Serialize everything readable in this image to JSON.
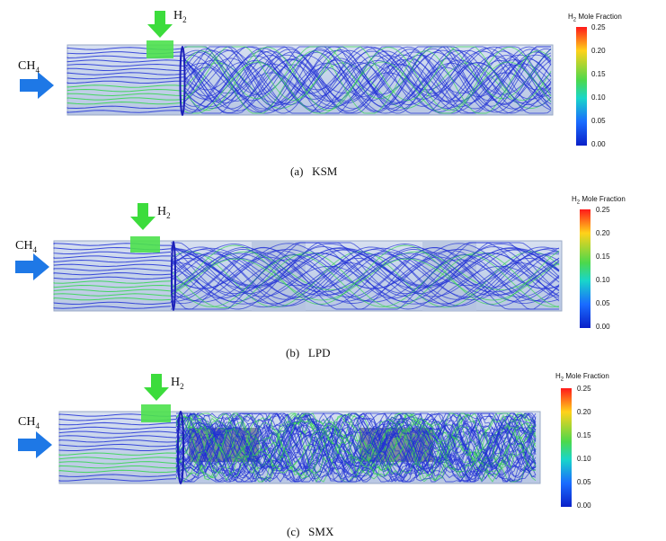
{
  "panels": [
    {
      "id": "ksm",
      "caption": "(a)   KSM",
      "inlet_ch4": "CH",
      "inlet_ch4_sub": "4",
      "inlet_h2": "H",
      "inlet_h2_sub": "2",
      "colorbar": {
        "title": "H",
        "title_sub": "2",
        "title_rest": " Mole Fraction",
        "ticks": [
          "0.25",
          "0.20",
          "0.15",
          "0.10",
          "0.05",
          "0.00"
        ]
      }
    },
    {
      "id": "lpd",
      "caption": "(b)   LPD",
      "inlet_ch4": "CH",
      "inlet_ch4_sub": "4",
      "inlet_h2": "H",
      "inlet_h2_sub": "2",
      "colorbar": {
        "title": "H",
        "title_sub": "2",
        "title_rest": " Mole Fraction",
        "ticks": [
          "0.25",
          "0.20",
          "0.15",
          "0.10",
          "0.05",
          "0.00"
        ]
      }
    },
    {
      "id": "smx",
      "caption": "(c)   SMX",
      "inlet_ch4": "CH",
      "inlet_ch4_sub": "4",
      "inlet_h2": "H",
      "inlet_h2_sub": "2",
      "colorbar": {
        "title": "H",
        "title_sub": "2",
        "title_rest": " Mole Fraction",
        "ticks": [
          "0.25",
          "0.20",
          "0.15",
          "0.10",
          "0.05",
          "0.00"
        ]
      }
    }
  ],
  "colors": {
    "streamline_blue": "#1f2fd6",
    "streamline_green": "#2fd64a",
    "arrow_blue": "#1e78e6",
    "arrow_green": "#3cdc3c",
    "pipe_fill": "#c9d6ec"
  },
  "colormap": [
    "#ff1a1a",
    "#ffd21a",
    "#4cd84c",
    "#19d6c9",
    "#1a6cff",
    "#0a20c8"
  ]
}
